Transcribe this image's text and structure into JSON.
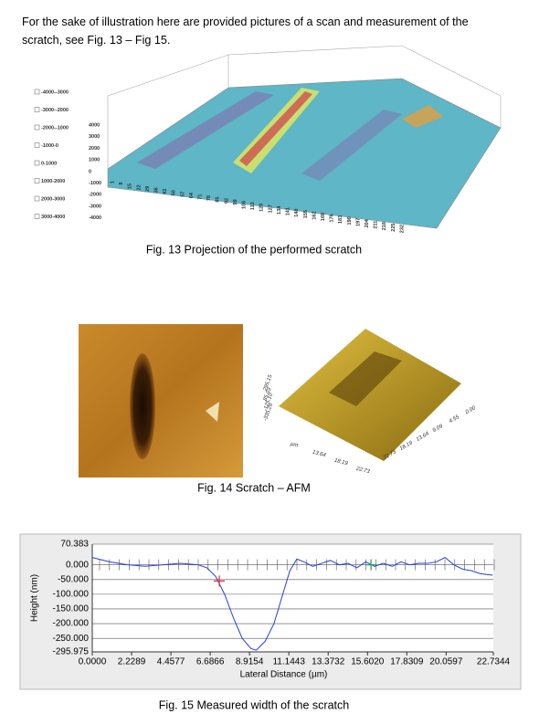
{
  "intro": "For the sake of illustration here are provided pictures of a scan and measurement of the scratch, see Fig. 13 – Fig 15.",
  "fig13": {
    "legend": [
      "-4000--3000",
      "-3000--2000",
      "-2000--1000",
      "-1000-0",
      "0-1000",
      "1000-2000",
      "2000-3000",
      "3000-4000"
    ],
    "z_ticks": [
      "4000",
      "3000",
      "2000",
      "1000",
      "0",
      "-1000",
      "-2000",
      "-3000",
      "-4000"
    ],
    "x_ticks": [
      "1",
      "8",
      "15",
      "22",
      "29",
      "36",
      "43",
      "50",
      "57",
      "64",
      "71",
      "78",
      "85",
      "92",
      "99",
      "106",
      "113",
      "120",
      "127",
      "134",
      "141",
      "148",
      "155",
      "162",
      "169",
      "176",
      "183",
      "190",
      "197",
      "204",
      "211",
      "218",
      "225",
      "232"
    ],
    "caption": "Fig. 13 Projection of the performed scratch"
  },
  "fig14": {
    "z_labels": [
      "295.15",
      "85.03",
      "-125.10",
      "-335.26"
    ],
    "x_labels": [
      "µm",
      "13.64",
      "18.19",
      "22.73"
    ],
    "y_labels": [
      "0.00",
      "4.55",
      "9.09",
      "13.64",
      "18.19",
      "22.73"
    ],
    "caption": "Fig. 14 Scratch – AFM"
  },
  "fig15": {
    "y_label": "Height (nm)",
    "x_label": "Lateral Distance (µm)",
    "ylim": [
      -295.975,
      70.383
    ],
    "xlim": [
      0,
      22.7344
    ],
    "yticks": [
      {
        "value": 70.383,
        "label": "70.383"
      },
      {
        "value": 0,
        "label": "0.000"
      },
      {
        "value": -50,
        "label": "-50.000"
      },
      {
        "value": -100,
        "label": "-100.000"
      },
      {
        "value": -150,
        "label": "-150.000"
      },
      {
        "value": -200,
        "label": "-200.000"
      },
      {
        "value": -250,
        "label": "-250.000"
      },
      {
        "value": -295.975,
        "label": "-295.975"
      }
    ],
    "xticks": [
      {
        "value": 0,
        "label": "0.0000"
      },
      {
        "value": 2.2289,
        "label": "2.2289"
      },
      {
        "value": 4.4577,
        "label": "4.4577"
      },
      {
        "value": 6.6866,
        "label": "6.6866"
      },
      {
        "value": 8.9154,
        "label": "8.9154"
      },
      {
        "value": 11.1443,
        "label": "11.1443"
      },
      {
        "value": 13.3732,
        "label": "13.3732"
      },
      {
        "value": 15.602,
        "label": "15.6020"
      },
      {
        "value": 17.8309,
        "label": "17.8309"
      },
      {
        "value": 20.0597,
        "label": "20.0597"
      },
      {
        "value": 22.7344,
        "label": "22.7344"
      }
    ],
    "profile": {
      "color": "#2040e0",
      "x": [
        0,
        1,
        2,
        3,
        4,
        5,
        6,
        6.5,
        7,
        7.5,
        8,
        8.5,
        9,
        9.3,
        9.8,
        10.3,
        10.8,
        11.2,
        11.6,
        12,
        12.5,
        13,
        13.5,
        14,
        14.5,
        15,
        15.5,
        16,
        16.5,
        17,
        17.5,
        18,
        18.5,
        19,
        19.5,
        20,
        20.5,
        21,
        21.5,
        22,
        22.7
      ],
      "y": [
        25,
        10,
        0,
        -5,
        0,
        5,
        0,
        -10,
        -40,
        -100,
        -180,
        -250,
        -285,
        -290,
        -260,
        -200,
        -100,
        -20,
        20,
        10,
        -5,
        5,
        15,
        0,
        5,
        -10,
        10,
        -5,
        5,
        -5,
        10,
        0,
        5,
        5,
        10,
        25,
        0,
        -15,
        -20,
        -30,
        -35
      ]
    },
    "markers": [
      {
        "x": 7.2,
        "y": -55,
        "color": "#e03030"
      },
      {
        "x": 15.8,
        "y": 0,
        "color": "#20a040"
      }
    ],
    "caption": "Fig. 15 Measured width of the scratch"
  }
}
